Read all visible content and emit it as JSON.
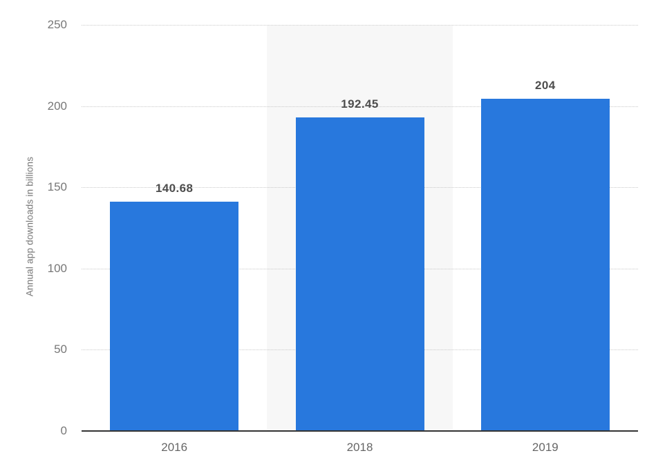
{
  "chart_data": {
    "type": "bar",
    "title": "",
    "xlabel": "",
    "ylabel": "Annual app downloads in billions",
    "categories": [
      "2016",
      "2018",
      "2019"
    ],
    "values": [
      140.68,
      192.45,
      204
    ],
    "value_labels": [
      "140.68",
      "192.45",
      "204"
    ],
    "ylim": [
      0,
      250
    ],
    "yticks": [
      250,
      200,
      150,
      100,
      50,
      0
    ],
    "grid": "horizontal-dotted",
    "legend": "none",
    "highlighted_category": "2018",
    "colors": {
      "bar": "#2878dd",
      "gridline": "#c9c9c9",
      "axis_line": "#333333",
      "tick_label": "#777777",
      "value_label": "#4d4d4d",
      "category_label": "#666666",
      "highlight_band": "#f7f7f7",
      "background": "#ffffff"
    }
  }
}
